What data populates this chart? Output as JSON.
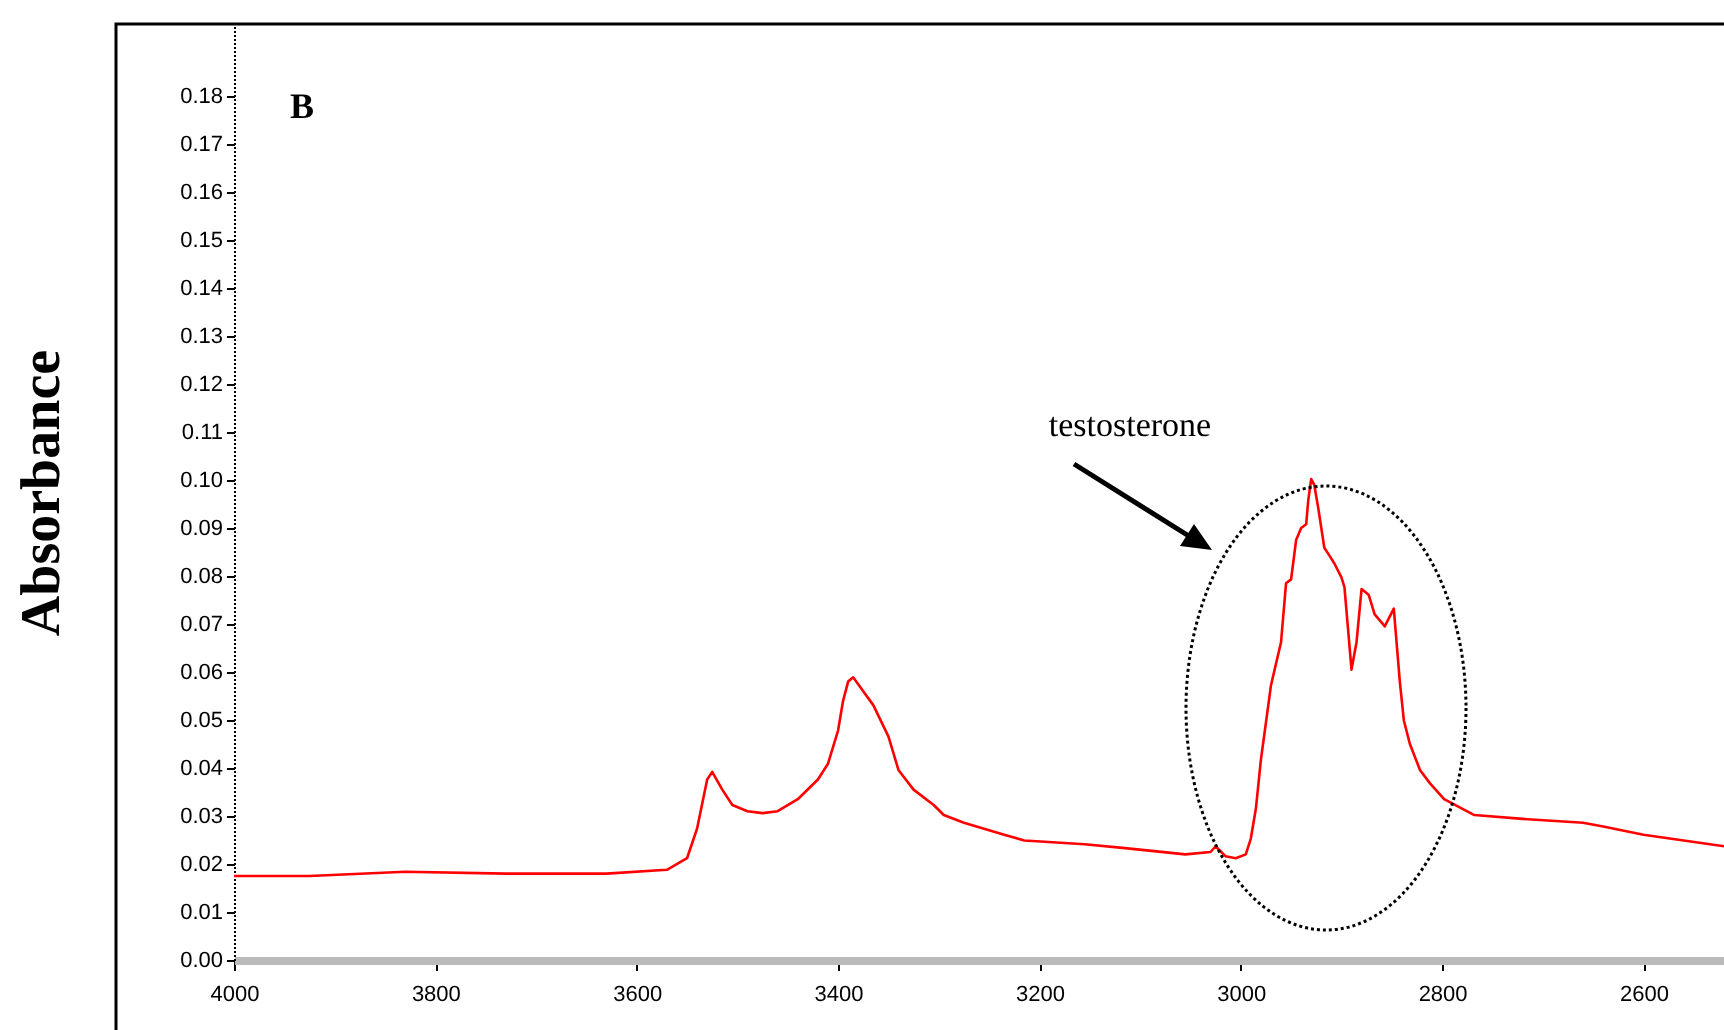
{
  "chart_data": {
    "type": "line",
    "ylabel": "Absorbance",
    "annotations": [
      "B",
      "testosterone"
    ],
    "xlim": [
      4000,
      2520
    ],
    "xticks": [
      4000,
      3800,
      3600,
      3400,
      3200,
      3000,
      2800,
      2600
    ],
    "ylim": [
      0,
      0.195
    ],
    "yticks": [
      {
        "value": 0,
        "label": "0.00"
      },
      {
        "value": 0.01,
        "label": "0.01"
      },
      {
        "value": 0.02,
        "label": "0.02"
      },
      {
        "value": 0.03,
        "label": "0.03"
      },
      {
        "value": 0.04,
        "label": "0.04"
      },
      {
        "value": 0.05,
        "label": "0.05"
      },
      {
        "value": 0.06,
        "label": "0.06"
      },
      {
        "value": 0.07,
        "label": "0.07"
      },
      {
        "value": 0.08,
        "label": "0.08"
      },
      {
        "value": 0.09,
        "label": "0.09"
      },
      {
        "value": 0.1,
        "label": "0.10"
      },
      {
        "value": 0.11,
        "label": "0.11"
      },
      {
        "value": 0.12,
        "label": "0.12"
      },
      {
        "value": 0.13,
        "label": "0.13"
      },
      {
        "value": 0.14,
        "label": "0.14"
      },
      {
        "value": 0.15,
        "label": "0.15"
      },
      {
        "value": 0.16,
        "label": "0.16"
      },
      {
        "value": 0.17,
        "label": "0.17"
      },
      {
        "value": 0.18,
        "label": "0.18"
      }
    ],
    "grid": false,
    "marker": "none",
    "line_style": "solid",
    "x": [
      4000,
      3925,
      3830,
      3730,
      3630,
      3570,
      3550,
      3540,
      3530,
      3525,
      3515,
      3505,
      3490,
      3475,
      3460,
      3440,
      3420,
      3410,
      3400,
      3395,
      3390,
      3385,
      3375,
      3365,
      3350,
      3340,
      3325,
      3305,
      3295,
      3275,
      3235,
      3215,
      3155,
      3115,
      3055,
      3030,
      3025,
      3015,
      3005,
      2995,
      2990,
      2985,
      2980,
      2970,
      2960,
      2955,
      2950,
      2945,
      2940,
      2935,
      2933,
      2930,
      2927,
      2923,
      2917,
      2913,
      2907,
      2900,
      2897,
      2890,
      2885,
      2880,
      2873,
      2867,
      2860,
      2857,
      2848,
      2842,
      2838,
      2832,
      2822,
      2812,
      2798,
      2768,
      2720,
      2660,
      2640,
      2600,
      2560,
      2520
    ],
    "series": [
      {
        "color": "#ff0000",
        "values": [
          0.0175,
          0.0175,
          0.0184,
          0.018,
          0.018,
          0.0188,
          0.0212,
          0.0274,
          0.0376,
          0.0392,
          0.0355,
          0.0323,
          0.031,
          0.0306,
          0.031,
          0.0335,
          0.0376,
          0.0409,
          0.0478,
          0.054,
          0.058,
          0.0589,
          0.056,
          0.0531,
          0.0466,
          0.0396,
          0.0355,
          0.0323,
          0.0302,
          0.0286,
          0.0261,
          0.0249,
          0.0241,
          0.0233,
          0.022,
          0.0225,
          0.0237,
          0.0216,
          0.0212,
          0.022,
          0.0253,
          0.0315,
          0.0417,
          0.0572,
          0.0662,
          0.0785,
          0.0793,
          0.0875,
          0.09,
          0.0908,
          0.0957,
          0.1002,
          0.099,
          0.0941,
          0.0859,
          0.0846,
          0.0826,
          0.0797,
          0.0777,
          0.0605,
          0.0662,
          0.0773,
          0.0761,
          0.072,
          0.0703,
          0.0695,
          0.0732,
          0.058,
          0.0499,
          0.045,
          0.0396,
          0.0368,
          0.0335,
          0.0302,
          0.0294,
          0.0286,
          0.0278,
          0.0261,
          0.0249,
          0.0237
        ]
      }
    ]
  }
}
